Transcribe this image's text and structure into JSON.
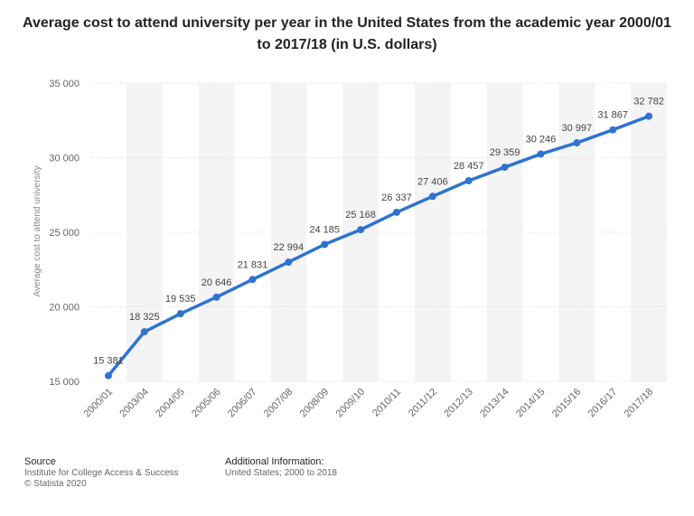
{
  "chart_data": {
    "type": "line",
    "title": "Average cost to attend university per year in the United States from the academic year 2000/01 to 2017/18 (in U.S. dollars)",
    "xlabel": "",
    "ylabel": "Average cost to attend university",
    "ylim": [
      15000,
      35000
    ],
    "yticks": [
      15000,
      20000,
      25000,
      30000,
      35000
    ],
    "ytick_labels": [
      "15 000",
      "20 000",
      "25 000",
      "30 000",
      "35 000"
    ],
    "categories": [
      "2000/01",
      "2003/04",
      "2004/05",
      "2005/06",
      "2006/07",
      "2007/08",
      "2008/09",
      "2009/10",
      "2010/11",
      "2011/12",
      "2012/13",
      "2013/14",
      "2014/15",
      "2015/16",
      "2016/17",
      "2017/18"
    ],
    "series": [
      {
        "name": "Average cost to attend university",
        "values": [
          15381,
          18325,
          19535,
          20646,
          21831,
          22994,
          24185,
          25168,
          26337,
          27406,
          28457,
          29359,
          30246,
          30997,
          31867,
          32782
        ],
        "labels": [
          "15 381",
          "18 325",
          "19 535",
          "20 646",
          "21 831",
          "22 994",
          "24 185",
          "25 168",
          "26 337",
          "27 406",
          "28 457",
          "29 359",
          "30 246",
          "30 997",
          "31 867",
          "32 782"
        ],
        "color": "#2f73d0"
      }
    ],
    "grid": true,
    "band_color": "#f4f4f4"
  },
  "footer": {
    "source_heading": "Source",
    "source_line1": "Institute for College Access & Success",
    "source_line2": "© Statista 2020",
    "info_heading": "Additional Information:",
    "info_line1": "United States; 2000 to 2018"
  }
}
